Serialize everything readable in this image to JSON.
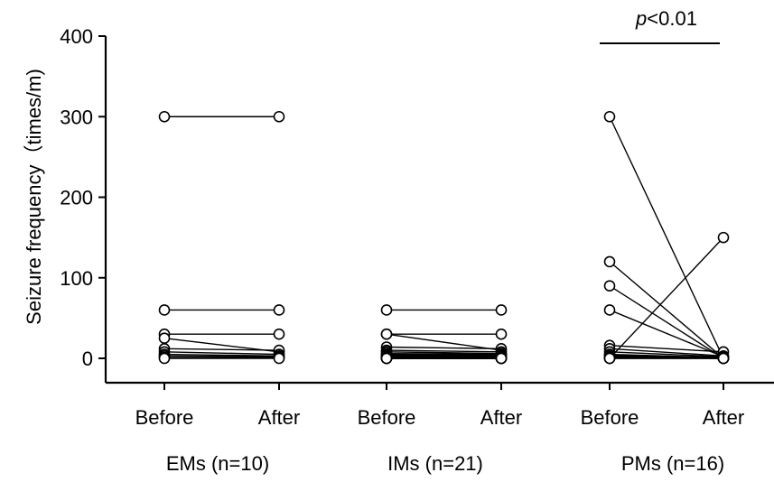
{
  "chart_data": {
    "type": "scatter",
    "ylabel": "Seizure frequency（times/m)",
    "ylim": [
      0,
      400
    ],
    "yticks": [
      0,
      100,
      200,
      300,
      400
    ],
    "grid": false,
    "groups": [
      {
        "label": "EMs (n=10)",
        "conditions": [
          "Before",
          "After"
        ],
        "pairs": [
          [
            300,
            300
          ],
          [
            60,
            60
          ],
          [
            30,
            30
          ],
          [
            25,
            8
          ],
          [
            12,
            10
          ],
          [
            8,
            5
          ],
          [
            5,
            3
          ],
          [
            3,
            2
          ],
          [
            1,
            1
          ],
          [
            0,
            0
          ]
        ]
      },
      {
        "label": "IMs (n=21)",
        "conditions": [
          "Before",
          "After"
        ],
        "pairs": [
          [
            60,
            60
          ],
          [
            30,
            30
          ],
          [
            30,
            10
          ],
          [
            14,
            12
          ],
          [
            10,
            8
          ],
          [
            8,
            6
          ],
          [
            6,
            5
          ],
          [
            5,
            4
          ],
          [
            4,
            3
          ],
          [
            3,
            3
          ],
          [
            2,
            2
          ],
          [
            2,
            1
          ],
          [
            1,
            1
          ],
          [
            1,
            0
          ],
          [
            0,
            0
          ],
          [
            0,
            0
          ],
          [
            0,
            0
          ],
          [
            0,
            0
          ],
          [
            0,
            0
          ],
          [
            0,
            0
          ],
          [
            0,
            0
          ]
        ]
      },
      {
        "label": "PMs (n=16)",
        "conditions": [
          "Before",
          "After"
        ],
        "pairs": [
          [
            300,
            0
          ],
          [
            0,
            150
          ],
          [
            120,
            0
          ],
          [
            90,
            0
          ],
          [
            60,
            2
          ],
          [
            16,
            8
          ],
          [
            12,
            3
          ],
          [
            8,
            2
          ],
          [
            5,
            1
          ],
          [
            4,
            0
          ],
          [
            3,
            0
          ],
          [
            2,
            0
          ],
          [
            2,
            0
          ],
          [
            1,
            0
          ],
          [
            0,
            0
          ],
          [
            0,
            0
          ]
        ]
      }
    ],
    "annotations": [
      {
        "text": "p<0.01",
        "group": 2
      }
    ]
  }
}
